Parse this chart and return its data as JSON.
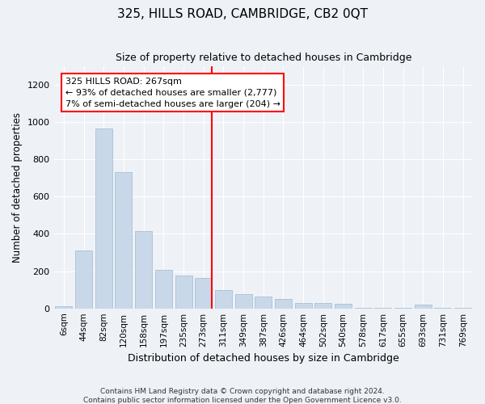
{
  "title": "325, HILLS ROAD, CAMBRIDGE, CB2 0QT",
  "subtitle": "Size of property relative to detached houses in Cambridge",
  "xlabel": "Distribution of detached houses by size in Cambridge",
  "ylabel": "Number of detached properties",
  "bar_color": "#c8d8e8",
  "bar_edge_color": "#a0b8d0",
  "categories": [
    "6sqm",
    "44sqm",
    "82sqm",
    "120sqm",
    "158sqm",
    "197sqm",
    "235sqm",
    "273sqm",
    "311sqm",
    "349sqm",
    "387sqm",
    "426sqm",
    "464sqm",
    "502sqm",
    "540sqm",
    "578sqm",
    "617sqm",
    "655sqm",
    "693sqm",
    "731sqm",
    "769sqm"
  ],
  "values": [
    10,
    310,
    965,
    730,
    415,
    205,
    175,
    165,
    100,
    75,
    65,
    50,
    30,
    30,
    25,
    3,
    3,
    3,
    22,
    3,
    3
  ],
  "red_line_index": 7,
  "red_line_label": "325 HILLS ROAD: 267sqm",
  "annotation_line1": "← 93% of detached houses are smaller (2,777)",
  "annotation_line2": "7% of semi-detached houses are larger (204) →",
  "ylim": [
    0,
    1300
  ],
  "yticks": [
    0,
    200,
    400,
    600,
    800,
    1000,
    1200
  ],
  "footer1": "Contains HM Land Registry data © Crown copyright and database right 2024.",
  "footer2": "Contains public sector information licensed under the Open Government Licence v3.0.",
  "background_color": "#eef2f7",
  "plot_bg_color": "#eef2f7"
}
